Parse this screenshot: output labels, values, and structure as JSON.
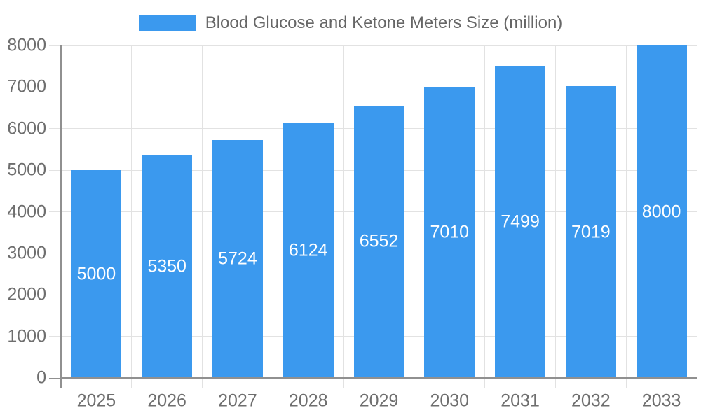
{
  "chart_data": {
    "type": "bar",
    "title": "Blood Glucose and Ketone Meters Size (million)",
    "categories": [
      "2025",
      "2026",
      "2027",
      "2028",
      "2029",
      "2030",
      "2031",
      "2032",
      "2033"
    ],
    "values": [
      5000,
      5350,
      5724,
      6124,
      6552,
      7010,
      7499,
      7019,
      8000
    ],
    "bar_value_labels": [
      "5000",
      "5350",
      "5724",
      "6124",
      "6552",
      "7010",
      "7499",
      "7019",
      "8000"
    ],
    "ylim": [
      0,
      8000
    ],
    "ytick_labels": [
      "0",
      "1000",
      "2000",
      "3000",
      "4000",
      "5000",
      "6000",
      "7000",
      "8000"
    ],
    "grid": true,
    "legend_position": "top",
    "colors": {
      "bar": "#3b99ee",
      "grid": "#e2e2e2",
      "axis": "#909090",
      "tick_text": "#6e6e6e",
      "legend_text": "#666666",
      "bar_label_text": "#ffffff"
    }
  }
}
